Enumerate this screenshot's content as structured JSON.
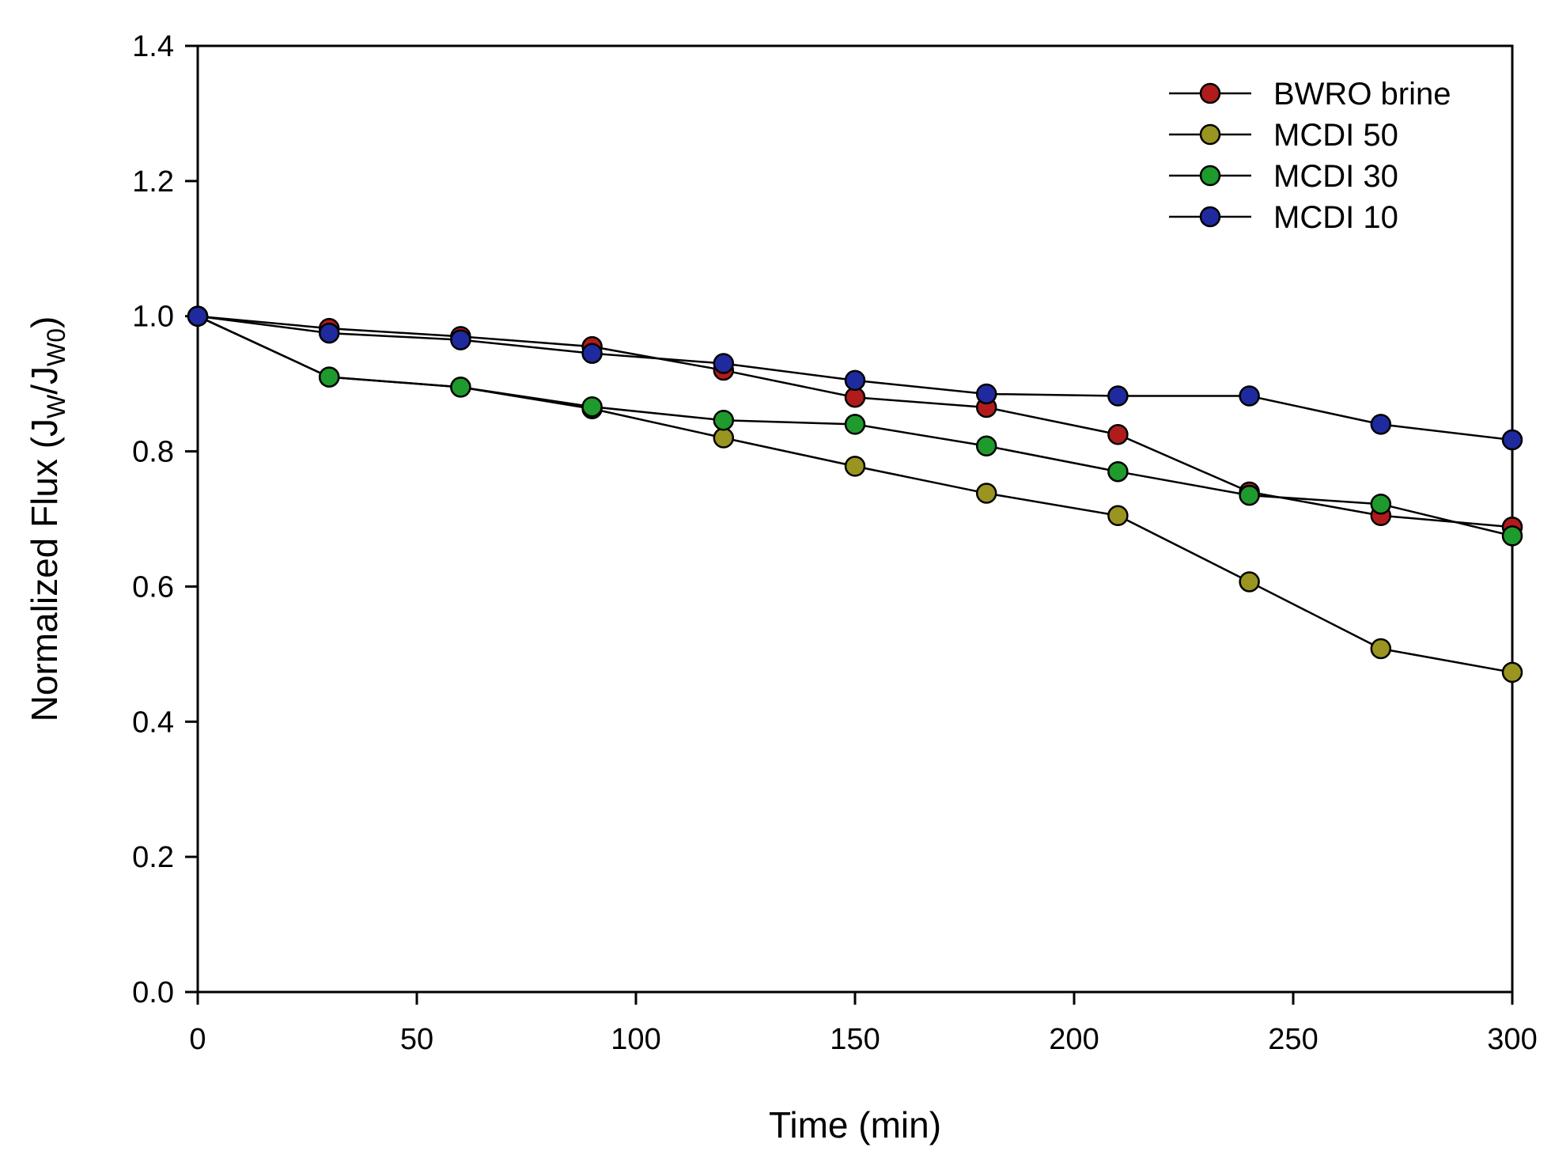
{
  "chart_data": {
    "type": "line",
    "title": "",
    "xlabel": "Time (min)",
    "ylabel": {
      "prefix": "Normalized Flux (J",
      "sub1": "W",
      "middle": "/J",
      "sub2": "W0",
      "suffix": ")"
    },
    "xlim": [
      0,
      300
    ],
    "ylim": [
      0.0,
      1.4
    ],
    "xticks": [
      0,
      50,
      100,
      150,
      200,
      250,
      300
    ],
    "yticks": [
      "0.0",
      "0.2",
      "0.4",
      "0.6",
      "0.8",
      "1.0",
      "1.2",
      "1.4"
    ],
    "x": [
      0,
      30,
      60,
      90,
      120,
      150,
      180,
      210,
      240,
      270,
      300
    ],
    "legend_position": "top-right",
    "series": [
      {
        "name": "BWRO brine",
        "color": "#b01c1c",
        "values": [
          1.0,
          0.982,
          0.97,
          0.955,
          0.92,
          0.88,
          0.865,
          0.825,
          0.74,
          0.705,
          0.688
        ]
      },
      {
        "name": "MCDI 50",
        "color": "#9a9420",
        "values": [
          1.0,
          0.91,
          0.895,
          0.863,
          0.82,
          0.778,
          0.738,
          0.705,
          0.607,
          0.508,
          0.473
        ]
      },
      {
        "name": "MCDI 30",
        "color": "#1f9a2c",
        "values": [
          1.0,
          0.91,
          0.895,
          0.866,
          0.846,
          0.84,
          0.808,
          0.77,
          0.735,
          0.722,
          0.675
        ]
      },
      {
        "name": "MCDI 10",
        "color": "#1f2a9e",
        "values": [
          1.0,
          0.975,
          0.965,
          0.945,
          0.93,
          0.905,
          0.885,
          0.882,
          0.882,
          0.84,
          0.817
        ]
      }
    ]
  }
}
